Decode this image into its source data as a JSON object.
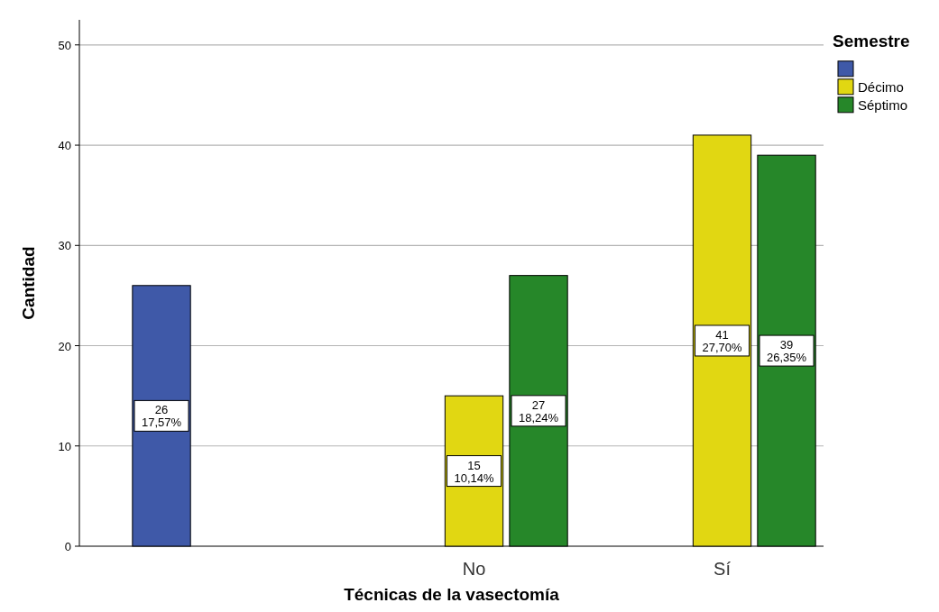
{
  "chart_data": {
    "type": "bar",
    "xlabel": "Técnicas de la vasectomía",
    "ylabel": "Cantidad",
    "legend_title": "Semestre",
    "categories": [
      null,
      "No",
      "Sí"
    ],
    "series": [
      {
        "color": "#3f59a8",
        "values": [
          26,
          null,
          null
        ],
        "value_labels": [
          "26\n17,57%",
          null,
          null
        ]
      },
      {
        "name": "Décimo",
        "color": "#e1d712",
        "values": [
          null,
          15,
          41
        ],
        "value_labels": [
          null,
          "15\n10,14%",
          "41\n27,70%"
        ]
      },
      {
        "name": "Séptimo",
        "color": "#268729",
        "values": [
          null,
          27,
          39
        ],
        "value_labels": [
          null,
          "27\n18,24%",
          "39\n26,35%"
        ]
      }
    ],
    "ylim": [
      0,
      52.5
    ],
    "yticks": [
      0,
      10,
      20,
      30,
      40,
      50
    ],
    "grid": "y",
    "legend": "top right"
  }
}
